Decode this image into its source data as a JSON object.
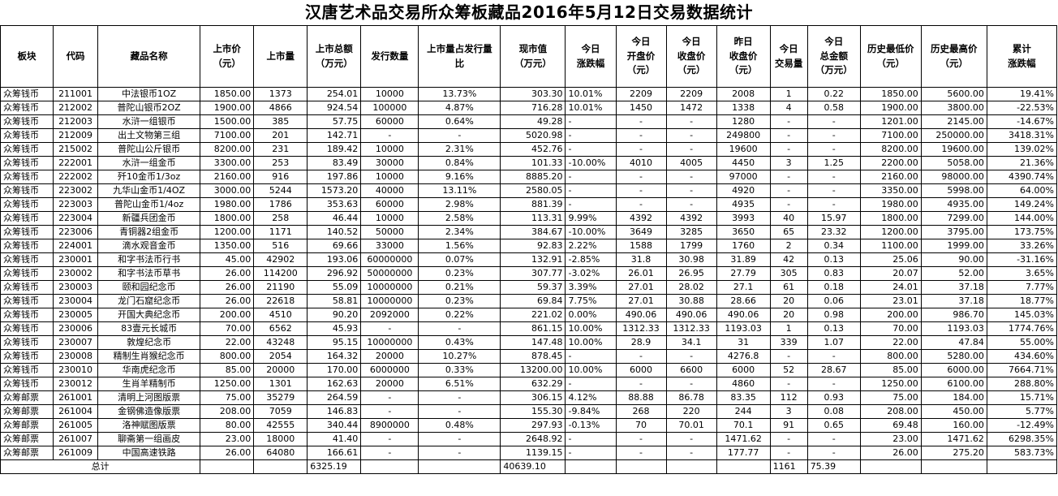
{
  "title": "汉唐艺术品交易所众筹板藏品2016年5月12日交易数据统计",
  "headers": [
    [
      "板块"
    ],
    [
      "代码"
    ],
    [
      "藏品名称"
    ],
    [
      "上市价",
      "（元）"
    ],
    [
      "上市量"
    ],
    [
      "上市总额",
      "（万元）"
    ],
    [
      "发行数量"
    ],
    [
      "上市量占发行量",
      "比"
    ],
    [
      "现市值",
      "（万元）"
    ],
    [
      "今日",
      "涨跌幅"
    ],
    [
      "今日",
      "开盘价",
      "（元）"
    ],
    [
      "今日",
      "收盘价",
      "（元）"
    ],
    [
      "昨日",
      "收盘价",
      "（元）"
    ],
    [
      "今日",
      "交易量"
    ],
    [
      "今日",
      "总金额",
      "（万元）"
    ],
    [
      "历史最低价",
      "（元）"
    ],
    [
      "历史最高价",
      "（元）"
    ],
    [
      "累计",
      "涨跌幅"
    ]
  ],
  "rows": [
    [
      "众筹钱币",
      "211001",
      "中法银币1OZ",
      "1850.00",
      "1373",
      "254.01",
      "10000",
      "13.73%",
      "303.30",
      "10.01%",
      "2209",
      "2209",
      "2008",
      "1",
      "0.22",
      "1850.00",
      "5600.00",
      "19.41%"
    ],
    [
      "众筹钱币",
      "212002",
      "普陀山银币2OZ",
      "1900.00",
      "4866",
      "924.54",
      "100000",
      "4.87%",
      "716.28",
      "10.01%",
      "1450",
      "1472",
      "1338",
      "4",
      "0.58",
      "1900.00",
      "3800.00",
      "-22.53%"
    ],
    [
      "众筹钱币",
      "212003",
      "水浒一组银币",
      "1500.00",
      "385",
      "57.75",
      "60000",
      "0.64%",
      "49.28",
      "-",
      "-",
      "-",
      "1280",
      "-",
      "-",
      "1201.00",
      "2145.00",
      "-14.67%"
    ],
    [
      "众筹钱币",
      "212009",
      "出土文物第三组",
      "7100.00",
      "201",
      "142.71",
      "-",
      "-",
      "5020.98",
      "-",
      "-",
      "-",
      "249800",
      "-",
      "-",
      "7100.00",
      "250000.00",
      "3418.31%"
    ],
    [
      "众筹钱币",
      "215002",
      "普陀山公斤银币",
      "8200.00",
      "231",
      "189.42",
      "10000",
      "2.31%",
      "452.76",
      "-",
      "-",
      "-",
      "19600",
      "-",
      "-",
      "8200.00",
      "19600.00",
      "139.02%"
    ],
    [
      "众筹钱币",
      "222001",
      "水浒一组金币",
      "3300.00",
      "253",
      "83.49",
      "30000",
      "0.84%",
      "101.33",
      "-10.00%",
      "4010",
      "4005",
      "4450",
      "3",
      "1.25",
      "2200.00",
      "5058.00",
      "21.36%"
    ],
    [
      "众筹钱币",
      "222002",
      "歼10金币1/3oz",
      "2160.00",
      "916",
      "197.86",
      "10000",
      "9.16%",
      "8885.20",
      "-",
      "-",
      "-",
      "97000",
      "-",
      "-",
      "2160.00",
      "98000.00",
      "4390.74%"
    ],
    [
      "众筹钱币",
      "223002",
      "九华山金币1/4OZ",
      "3000.00",
      "5244",
      "1573.20",
      "40000",
      "13.11%",
      "2580.05",
      "-",
      "-",
      "-",
      "4920",
      "-",
      "-",
      "3350.00",
      "5998.00",
      "64.00%"
    ],
    [
      "众筹钱币",
      "223003",
      "普陀山金币1/4oz",
      "1980.00",
      "1786",
      "353.63",
      "60000",
      "2.98%",
      "881.39",
      "-",
      "-",
      "-",
      "4935",
      "-",
      "-",
      "1980.00",
      "4935.00",
      "149.24%"
    ],
    [
      "众筹钱币",
      "223004",
      "新疆兵团金币",
      "1800.00",
      "258",
      "46.44",
      "10000",
      "2.58%",
      "113.31",
      "9.99%",
      "4392",
      "4392",
      "3993",
      "40",
      "15.97",
      "1800.00",
      "7299.00",
      "144.00%"
    ],
    [
      "众筹钱币",
      "223006",
      "青铜器2组金币",
      "1200.00",
      "1171",
      "140.52",
      "50000",
      "2.34%",
      "384.67",
      "-10.00%",
      "3649",
      "3285",
      "3650",
      "65",
      "23.32",
      "1200.00",
      "3795.00",
      "173.75%"
    ],
    [
      "众筹钱币",
      "224001",
      "滴水观音金币",
      "1350.00",
      "516",
      "69.66",
      "33000",
      "1.56%",
      "92.83",
      "2.22%",
      "1588",
      "1799",
      "1760",
      "2",
      "0.34",
      "1100.00",
      "1999.00",
      "33.26%"
    ],
    [
      "众筹钱币",
      "230001",
      "和字书法币行书",
      "45.00",
      "42902",
      "193.06",
      "60000000",
      "0.07%",
      "132.91",
      "-2.85%",
      "31.8",
      "30.98",
      "31.89",
      "42",
      "0.13",
      "25.06",
      "90.00",
      "-31.16%"
    ],
    [
      "众筹钱币",
      "230002",
      "和字书法币草书",
      "26.00",
      "114200",
      "296.92",
      "50000000",
      "0.23%",
      "307.77",
      "-3.02%",
      "26.01",
      "26.95",
      "27.79",
      "305",
      "0.83",
      "20.07",
      "52.00",
      "3.65%"
    ],
    [
      "众筹钱币",
      "230003",
      "颐和园纪念币",
      "26.00",
      "21190",
      "55.09",
      "10000000",
      "0.21%",
      "59.37",
      "3.39%",
      "27.01",
      "28.02",
      "27.1",
      "61",
      "0.18",
      "24.01",
      "37.18",
      "7.77%"
    ],
    [
      "众筹钱币",
      "230004",
      "龙门石窟纪念币",
      "26.00",
      "22618",
      "58.81",
      "10000000",
      "0.23%",
      "69.84",
      "7.75%",
      "27.01",
      "30.88",
      "28.66",
      "20",
      "0.06",
      "23.01",
      "37.18",
      "18.77%"
    ],
    [
      "众筹钱币",
      "230005",
      "开国大典纪念币",
      "200.00",
      "4510",
      "90.20",
      "2092000",
      "0.22%",
      "221.02",
      "0.00%",
      "490.06",
      "490.06",
      "490.06",
      "20",
      "0.98",
      "200.00",
      "986.70",
      "145.03%"
    ],
    [
      "众筹钱币",
      "230006",
      "83壹元长城币",
      "70.00",
      "6562",
      "45.93",
      "-",
      "-",
      "861.15",
      "10.00%",
      "1312.33",
      "1312.33",
      "1193.03",
      "1",
      "0.13",
      "70.00",
      "1193.03",
      "1774.76%"
    ],
    [
      "众筹钱币",
      "230007",
      "敦煌纪念币",
      "22.00",
      "43248",
      "95.15",
      "10000000",
      "0.43%",
      "147.48",
      "10.00%",
      "28.9",
      "34.1",
      "31",
      "339",
      "1.07",
      "22.00",
      "47.84",
      "55.00%"
    ],
    [
      "众筹钱币",
      "230008",
      "精制生肖猴纪念币",
      "800.00",
      "2054",
      "164.32",
      "20000",
      "10.27%",
      "878.45",
      "-",
      "-",
      "-",
      "4276.8",
      "-",
      "-",
      "800.00",
      "5280.00",
      "434.60%"
    ],
    [
      "众筹钱币",
      "230010",
      "华南虎纪念币",
      "85.00",
      "20000",
      "170.00",
      "6000000",
      "0.33%",
      "13200.00",
      "10.00%",
      "6000",
      "6600",
      "6000",
      "52",
      "28.67",
      "85.00",
      "6000.00",
      "7664.71%"
    ],
    [
      "众筹钱币",
      "230012",
      "生肖羊精制币",
      "1250.00",
      "1301",
      "162.63",
      "20000",
      "6.51%",
      "632.29",
      "-",
      "-",
      "-",
      "4860",
      "-",
      "-",
      "1250.00",
      "6100.00",
      "288.80%"
    ],
    [
      "众筹邮票",
      "261001",
      "清明上河图版票",
      "75.00",
      "35279",
      "264.59",
      "-",
      "-",
      "306.15",
      "4.12%",
      "88.88",
      "86.78",
      "83.35",
      "112",
      "0.93",
      "75.00",
      "184.00",
      "15.71%"
    ],
    [
      "众筹邮票",
      "261004",
      "金钢佛造像版票",
      "208.00",
      "7059",
      "146.83",
      "-",
      "-",
      "155.30",
      "-9.84%",
      "268",
      "220",
      "244",
      "3",
      "0.08",
      "208.00",
      "450.00",
      "5.77%"
    ],
    [
      "众筹邮票",
      "261005",
      "洛神赋图版票",
      "80.00",
      "42555",
      "340.44",
      "8900000",
      "0.48%",
      "297.93",
      "-0.13%",
      "70",
      "70.01",
      "70.1",
      "91",
      "0.65",
      "69.48",
      "160.00",
      "-12.49%"
    ],
    [
      "众筹邮票",
      "261007",
      "聊斋第一组画皮",
      "23.00",
      "18000",
      "41.40",
      "-",
      "-",
      "2648.92",
      "-",
      "-",
      "-",
      "1471.62",
      "-",
      "-",
      "23.00",
      "1471.62",
      "6298.35%"
    ],
    [
      "众筹邮票",
      "261009",
      "中国高速铁路",
      "26.00",
      "64080",
      "166.61",
      "-",
      "-",
      "1139.15",
      "-",
      "-",
      "-",
      "177.77",
      "-",
      "-",
      "26.00",
      "275.20",
      "583.73%"
    ]
  ],
  "total": {
    "label": "总计",
    "listing_total": "6325.19",
    "market_value": "40639.10",
    "volume": "1161",
    "amount": "75.39"
  }
}
